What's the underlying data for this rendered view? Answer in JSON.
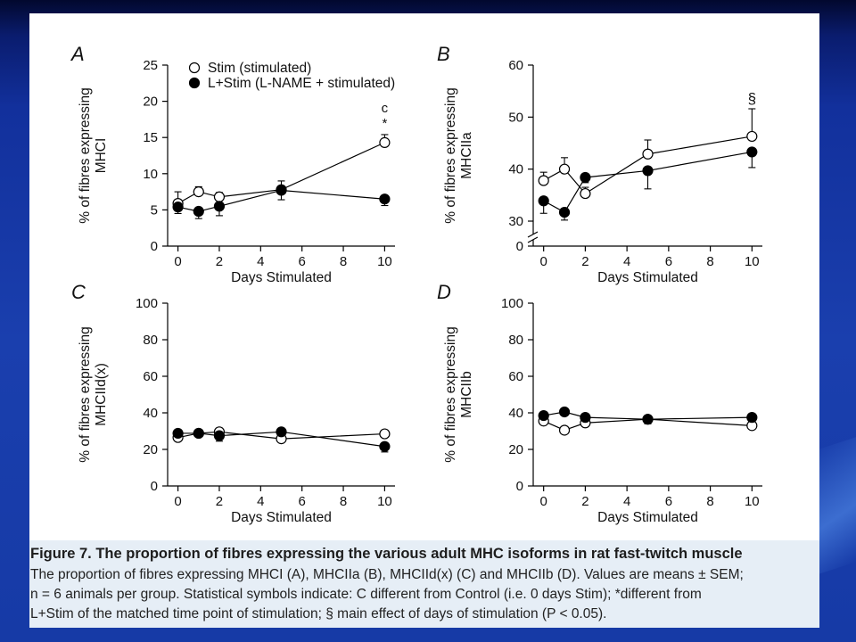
{
  "figure": {
    "caption_title": "Figure 7.  The proportion of fibres expressing the various adult MHC isoforms in rat fast-twitch muscle",
    "caption_lines": [
      "The proportion of fibres expressing MHCI (A), MHCIIa (B), MHCIId(x) (C) and MHCIIb (D). Values are means ± SEM;",
      "n = 6 animals per group. Statistical symbols indicate: C different from Control (i.e. 0 days Stim); *different from",
      "L+Stim of the matched time point of stimulation; § main effect of days of stimulation (P < 0.05)."
    ]
  },
  "chart_data": [
    {
      "type": "line",
      "panel_letter": "A",
      "xlabel": "Days Stimulated",
      "ylabel_line1": "% of fibres expressing",
      "ylabel_line2": "MHCI",
      "x": [
        0,
        1,
        2,
        5,
        10
      ],
      "xticks": [
        0,
        2,
        4,
        6,
        8,
        10
      ],
      "yticks": [
        0,
        5,
        10,
        15,
        20,
        25
      ],
      "xlim": [
        -0.5,
        10.5
      ],
      "ylim": [
        0,
        25
      ],
      "legend": [
        "Stim (stimulated)",
        "L+Stim (L-NAME + stimulated)"
      ],
      "series": [
        {
          "name": "Stim (stimulated)",
          "marker": "open",
          "values": [
            5.9,
            7.5,
            6.8,
            7.8,
            14.3
          ],
          "err": [
            1.6,
            0.7,
            0.6,
            1.2,
            1.1
          ]
        },
        {
          "name": "L+Stim (L-NAME + stimulated)",
          "marker": "filled",
          "values": [
            5.4,
            4.8,
            5.5,
            7.7,
            6.5
          ],
          "err": [
            0.9,
            1.0,
            1.3,
            1.3,
            0.9
          ]
        }
      ],
      "annotations": [
        "c",
        "*"
      ]
    },
    {
      "type": "line",
      "panel_letter": "B",
      "xlabel": "Days Stimulated",
      "ylabel_line1": "% of fibres expressing",
      "ylabel_line2": "MHCIIa",
      "x": [
        0,
        1,
        2,
        5,
        10
      ],
      "xticks": [
        0,
        2,
        4,
        6,
        8,
        10
      ],
      "yticks": [
        30,
        40,
        50,
        60
      ],
      "y_break_tick": "0",
      "xlim": [
        -0.5,
        10.5
      ],
      "ylim": [
        27,
        60
      ],
      "series": [
        {
          "name": "Stim (stimulated)",
          "marker": "open",
          "values": [
            37.8,
            40.0,
            35.3,
            42.9,
            46.3
          ],
          "err": [
            1.6,
            2.2,
            1.2,
            2.7,
            5.3
          ]
        },
        {
          "name": "L+Stim (L-NAME + stimulated)",
          "marker": "filled",
          "values": [
            33.9,
            31.7,
            38.4,
            39.7,
            43.3
          ],
          "err": [
            2.4,
            1.5,
            1.0,
            3.5,
            3.0
          ]
        }
      ],
      "annotations": [
        "§"
      ]
    },
    {
      "type": "line",
      "panel_letter": "C",
      "xlabel": "Days Stimulated",
      "ylabel_line1": "% of fibres expressing",
      "ylabel_line2": "MHCIId(x)",
      "x": [
        0,
        1,
        2,
        5,
        10
      ],
      "xticks": [
        0,
        2,
        4,
        6,
        8,
        10
      ],
      "yticks": [
        0,
        20,
        40,
        60,
        80,
        100
      ],
      "xlim": [
        -0.5,
        10.5
      ],
      "ylim": [
        0,
        100
      ],
      "series": [
        {
          "name": "Stim (stimulated)",
          "marker": "open",
          "values": [
            26.5,
            28.8,
            29.6,
            25.8,
            28.5
          ],
          "err": [
            1.5,
            1.8,
            2.0,
            1.5,
            1.8
          ]
        },
        {
          "name": "L+Stim (L-NAME + stimulated)",
          "marker": "filled",
          "values": [
            28.8,
            28.8,
            27.5,
            29.6,
            21.6
          ],
          "err": [
            1.5,
            1.5,
            3.0,
            1.5,
            3.0
          ]
        }
      ]
    },
    {
      "type": "line",
      "panel_letter": "D",
      "xlabel": "Days Stimulated",
      "ylabel_line1": "% of fibres expressing",
      "ylabel_line2": "MHCIIb",
      "x": [
        0,
        1,
        2,
        5,
        10
      ],
      "xticks": [
        0,
        2,
        4,
        6,
        8,
        10
      ],
      "yticks": [
        0,
        20,
        40,
        60,
        80,
        100
      ],
      "xlim": [
        -0.5,
        10.5
      ],
      "ylim": [
        0,
        100
      ],
      "series": [
        {
          "name": "Stim (stimulated)",
          "marker": "open",
          "values": [
            35.5,
            30.5,
            34.5,
            36.5,
            33.0
          ],
          "err": [
            2.5,
            1.5,
            3.0,
            2.0,
            2.5
          ]
        },
        {
          "name": "L+Stim (L-NAME + stimulated)",
          "marker": "filled",
          "values": [
            38.5,
            40.5,
            37.5,
            36.5,
            37.5
          ],
          "err": [
            2.5,
            1.5,
            2.0,
            2.5,
            2.0
          ]
        }
      ]
    }
  ]
}
